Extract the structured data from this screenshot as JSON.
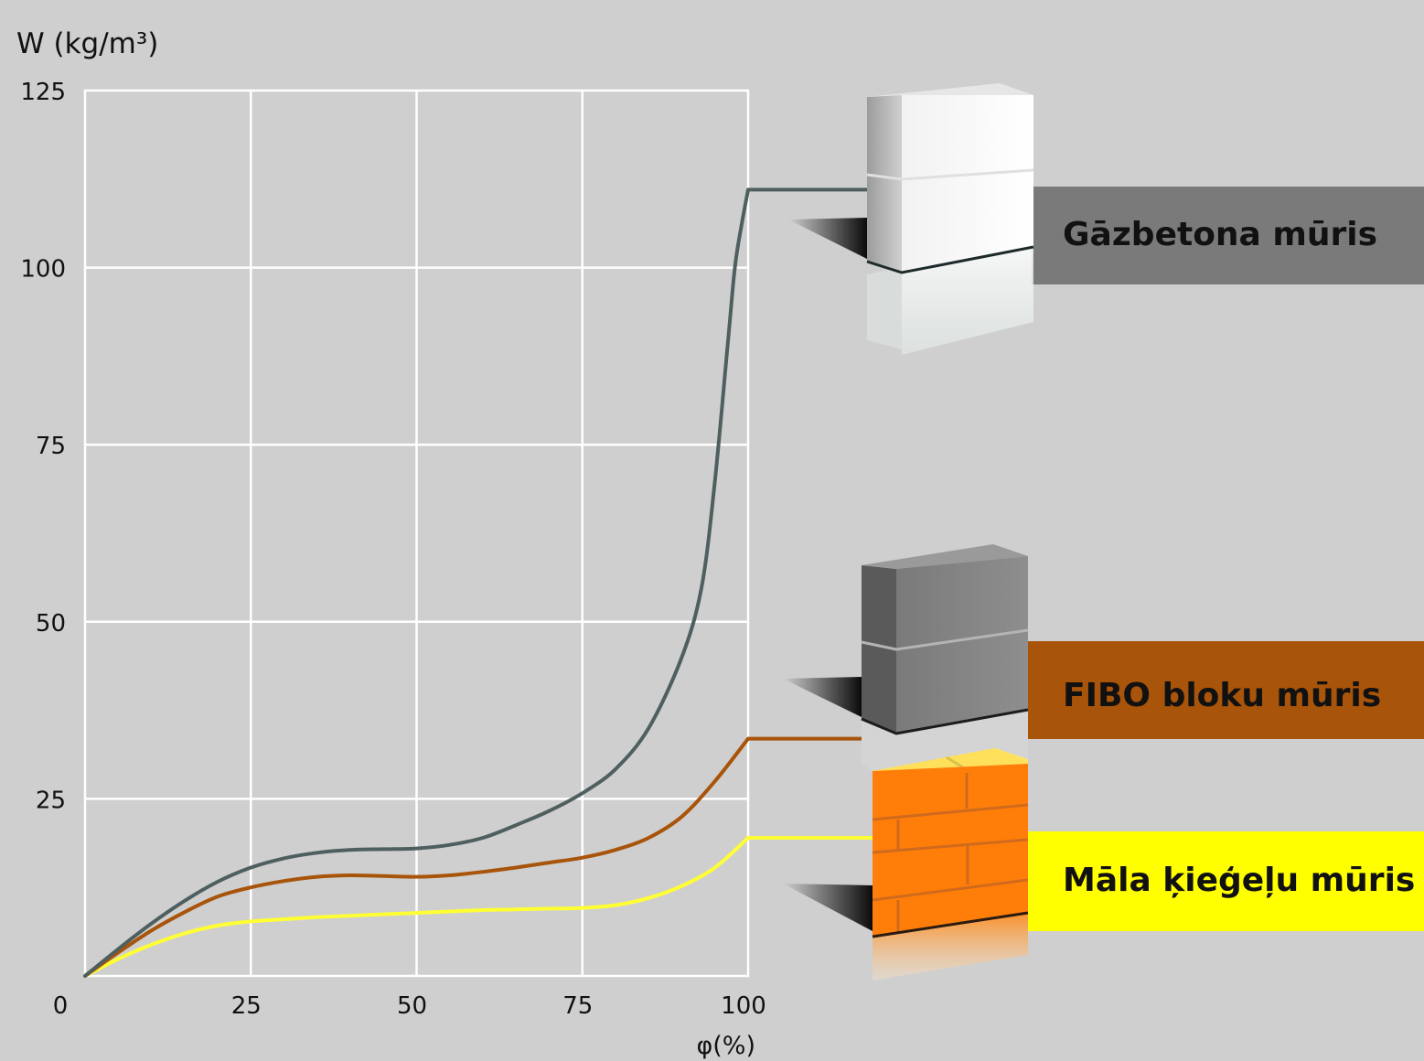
{
  "chart_data": {
    "type": "line",
    "title": "",
    "ylabel": "W (kg/m³)",
    "xlabel": "φ(%)",
    "xlim": [
      0,
      100
    ],
    "ylim": [
      0,
      125
    ],
    "xticks": [
      0,
      25,
      50,
      75,
      100
    ],
    "yticks": [
      25,
      50,
      75,
      100,
      125
    ],
    "grid": true,
    "legend_position": "right",
    "series": [
      {
        "name": "Gāzbetona mūris",
        "color": "#4f5f5f",
        "label_bg": "#7a7a7a",
        "block": "aerated-concrete-block-icon",
        "x": [
          0,
          5,
          10,
          15,
          20,
          25,
          30,
          35,
          40,
          45,
          50,
          55,
          60,
          65,
          70,
          75,
          80,
          85,
          90,
          93,
          95,
          97,
          98,
          99,
          100
        ],
        "y": [
          0,
          3.8,
          7.4,
          10.6,
          13.3,
          15.3,
          16.6,
          17.4,
          17.8,
          17.9,
          18.0,
          18.5,
          19.5,
          21.3,
          23.3,
          25.8,
          29.2,
          35.0,
          45.0,
          55.0,
          70.0,
          90.0,
          100.0,
          106.0,
          111.0
        ]
      },
      {
        "name": "FIBO bloku mūris",
        "color": "#a8540a",
        "label_bg": "#a8540a",
        "block": "fibo-block-icon",
        "x": [
          0,
          5,
          10,
          15,
          20,
          25,
          30,
          35,
          40,
          45,
          50,
          55,
          60,
          65,
          70,
          75,
          80,
          85,
          90,
          95,
          100
        ],
        "y": [
          0,
          3.3,
          6.4,
          9.0,
          11.2,
          12.5,
          13.4,
          14.0,
          14.2,
          14.1,
          14.0,
          14.2,
          14.7,
          15.3,
          16.0,
          16.7,
          17.8,
          19.5,
          22.5,
          27.5,
          33.5
        ]
      },
      {
        "name": "Māla ķieģeļu mūris",
        "color": "#ffff33",
        "label_bg": "#ffff00",
        "block": "clay-brick-icon",
        "x": [
          0,
          5,
          10,
          15,
          20,
          25,
          30,
          35,
          40,
          45,
          50,
          55,
          60,
          65,
          70,
          75,
          80,
          85,
          90,
          95,
          100
        ],
        "y": [
          0,
          2.4,
          4.4,
          6.0,
          7.1,
          7.7,
          8.0,
          8.3,
          8.5,
          8.7,
          8.9,
          9.1,
          9.3,
          9.4,
          9.5,
          9.6,
          10.0,
          11.0,
          12.7,
          15.3,
          19.5
        ]
      }
    ]
  }
}
